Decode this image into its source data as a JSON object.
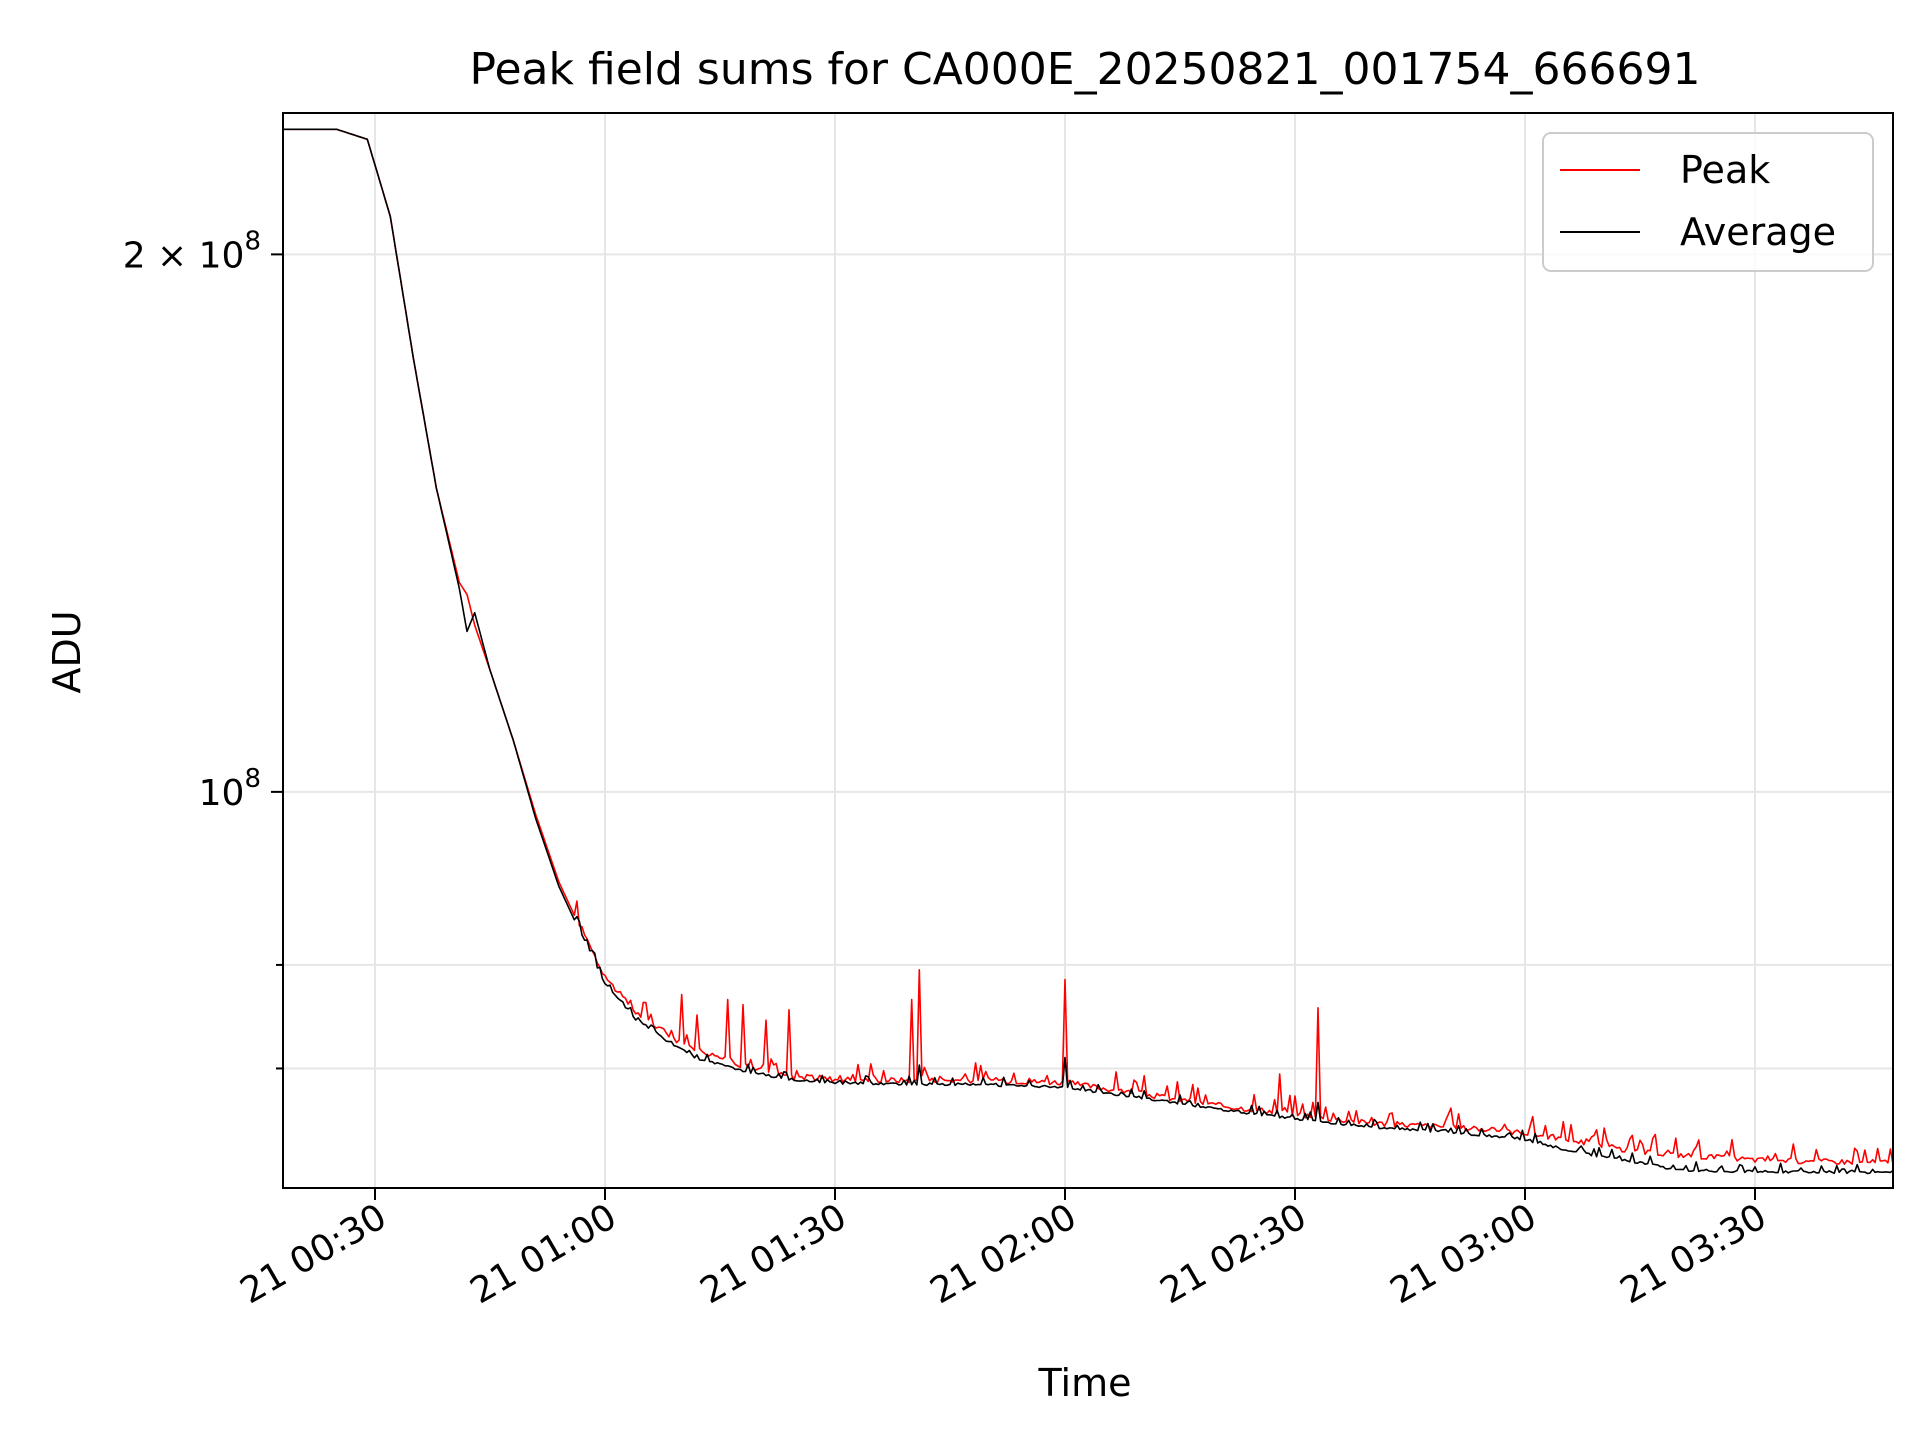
{
  "chart_data": {
    "type": "line",
    "title": "Peak field sums for CA000E_20250821_001754_666691",
    "xlabel": "Time",
    "ylabel": "ADU",
    "yscale": "log",
    "xlim": [
      "2025-08-21 00:18",
      "2025-08-21 03:48"
    ],
    "ylim": [
      60000000,
      240000000
    ],
    "grid": true,
    "legend_position": "upper right",
    "x_ticks": [
      {
        "t": "2025-08-21 00:30",
        "label": "21 00:30"
      },
      {
        "t": "2025-08-21 01:00",
        "label": "21 01:00"
      },
      {
        "t": "2025-08-21 01:30",
        "label": "21 01:30"
      },
      {
        "t": "2025-08-21 02:00",
        "label": "21 02:00"
      },
      {
        "t": "2025-08-21 02:30",
        "label": "21 02:30"
      },
      {
        "t": "2025-08-21 03:00",
        "label": "21 03:00"
      },
      {
        "t": "2025-08-21 03:30",
        "label": "21 03:30"
      }
    ],
    "y_major_ticks": [
      {
        "value": 200000000,
        "label_base": "2 × 10",
        "label_exp": "8"
      },
      {
        "value": 100000000,
        "label_base": "10",
        "label_exp": "8"
      }
    ],
    "y_minor_ticks": [
      70000000,
      80000000,
      300000000
    ],
    "series": [
      {
        "name": "Peak",
        "color": "#ff0000",
        "x": [
          "2025-08-21 00:18",
          "2025-08-21 00:25",
          "2025-08-21 00:29",
          "2025-08-21 00:32",
          "2025-08-21 00:35",
          "2025-08-21 00:38",
          "2025-08-21 00:41",
          "2025-08-21 00:42",
          "2025-08-21 00:43",
          "2025-08-21 00:45",
          "2025-08-21 00:48",
          "2025-08-21 00:51",
          "2025-08-21 00:54",
          "2025-08-21 00:57",
          "2025-08-21 01:00",
          "2025-08-21 01:04",
          "2025-08-21 01:08",
          "2025-08-21 01:10",
          "2025-08-21 01:12",
          "2025-08-21 01:16",
          "2025-08-21 01:18",
          "2025-08-21 01:21",
          "2025-08-21 01:24",
          "2025-08-21 01:30",
          "2025-08-21 01:40",
          "2025-08-21 01:41",
          "2025-08-21 01:50",
          "2025-08-21 02:00",
          "2025-08-21 02:10",
          "2025-08-21 02:20",
          "2025-08-21 02:27",
          "2025-08-21 02:30",
          "2025-08-21 02:33",
          "2025-08-21 02:40",
          "2025-08-21 02:50",
          "2025-08-21 03:00",
          "2025-08-21 03:05",
          "2025-08-21 03:15",
          "2025-08-21 03:30",
          "2025-08-21 03:35",
          "2025-08-21 03:48"
        ],
        "y": [
          235000000,
          235000000,
          232000000,
          210000000,
          175000000,
          148000000,
          131000000,
          129000000,
          124000000,
          117000000,
          107000000,
          97000000,
          89000000,
          83500000,
          78500000,
          75000000,
          73000000,
          72000000,
          71500000,
          70500000,
          70000000,
          69500000,
          69000000,
          68800000,
          68700000,
          68700000,
          68700000,
          68500000,
          67500000,
          66500000,
          66000000,
          65800000,
          65500000,
          65000000,
          64700000,
          64200000,
          63700000,
          62600000,
          62000000,
          61900000,
          61800000
        ],
        "spikes": [
          {
            "x": "2025-08-21 01:10",
            "y": 77000000
          },
          {
            "x": "2025-08-21 01:12",
            "y": 75000000
          },
          {
            "x": "2025-08-21 01:16",
            "y": 76500000
          },
          {
            "x": "2025-08-21 01:18",
            "y": 76000000
          },
          {
            "x": "2025-08-21 01:21",
            "y": 74500000
          },
          {
            "x": "2025-08-21 01:24",
            "y": 75500000
          },
          {
            "x": "2025-08-21 01:40",
            "y": 76500000
          },
          {
            "x": "2025-08-21 01:41",
            "y": 79500000
          },
          {
            "x": "2025-08-21 02:00",
            "y": 78500000
          },
          {
            "x": "2025-08-21 02:28",
            "y": 69500000
          },
          {
            "x": "2025-08-21 02:33",
            "y": 75700000
          },
          {
            "x": "2025-08-21 03:35",
            "y": 63500000
          }
        ]
      },
      {
        "name": "Average",
        "color": "#000000",
        "x": [
          "2025-08-21 00:18",
          "2025-08-21 00:25",
          "2025-08-21 00:29",
          "2025-08-21 00:32",
          "2025-08-21 00:35",
          "2025-08-21 00:38",
          "2025-08-21 00:41",
          "2025-08-21 00:42",
          "2025-08-21 00:43",
          "2025-08-21 00:45",
          "2025-08-21 00:48",
          "2025-08-21 00:51",
          "2025-08-21 00:54",
          "2025-08-21 00:57",
          "2025-08-21 01:00",
          "2025-08-21 01:04",
          "2025-08-21 01:08",
          "2025-08-21 01:12",
          "2025-08-21 01:18",
          "2025-08-21 01:24",
          "2025-08-21 01:30",
          "2025-08-21 01:40",
          "2025-08-21 01:50",
          "2025-08-21 02:00",
          "2025-08-21 02:10",
          "2025-08-21 02:20",
          "2025-08-21 02:30",
          "2025-08-21 02:40",
          "2025-08-21 02:50",
          "2025-08-21 03:00",
          "2025-08-21 03:05",
          "2025-08-21 03:15",
          "2025-08-21 03:20",
          "2025-08-21 03:30",
          "2025-08-21 03:48"
        ],
        "y": [
          235000000,
          235000000,
          232000000,
          210000000,
          175000000,
          148000000,
          130000000,
          123000000,
          126000000,
          117000000,
          107000000,
          96500000,
          88500000,
          83000000,
          78000000,
          74500000,
          72500000,
          70800000,
          69700000,
          68900000,
          68600000,
          68500000,
          68400000,
          68200000,
          67300000,
          66300000,
          65500000,
          64800000,
          64400000,
          63800000,
          62900000,
          61900000,
          61300000,
          61200000,
          61100000
        ],
        "spikes": [
          {
            "x": "2025-08-21 01:10",
            "y": 71800000
          },
          {
            "x": "2025-08-21 01:41",
            "y": 70300000
          },
          {
            "x": "2025-08-21 02:00",
            "y": 71000000
          },
          {
            "x": "2025-08-21 02:33",
            "y": 67000000
          }
        ]
      }
    ]
  }
}
